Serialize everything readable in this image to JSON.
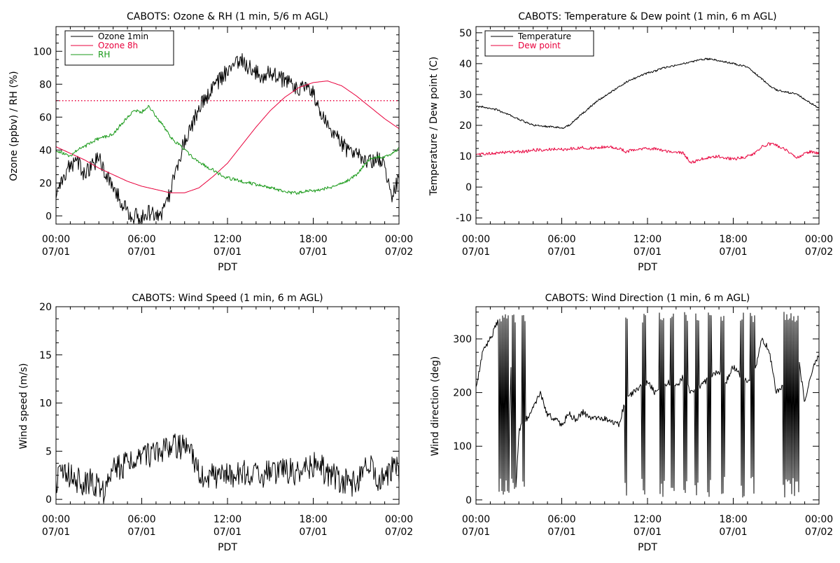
{
  "chart_data": [
    {
      "type": "line",
      "title": "CABOTS: Ozone & RH (1 min, 5/6 m AGL)",
      "xlabel": "PDT",
      "ylabel": "Ozone (ppbv) / RH (%)",
      "xlim": [
        0,
        24
      ],
      "ylim": [
        -5,
        115
      ],
      "yticks": [
        0,
        20,
        40,
        60,
        80,
        100
      ],
      "xticks": [
        0,
        6,
        12,
        18,
        24
      ],
      "xtick_labels": [
        [
          "00:00",
          "07/01"
        ],
        [
          "06:00",
          "07/01"
        ],
        [
          "12:00",
          "07/01"
        ],
        [
          "18:00",
          "07/01"
        ],
        [
          "00:00",
          "07/02"
        ]
      ],
      "grid": false,
      "legend_position": "top-left",
      "reference_lines": [
        {
          "y": 70,
          "color": "#e8003c",
          "style": "dotted"
        }
      ],
      "series": [
        {
          "name": "Ozone 1min",
          "color": "#000000",
          "noise": 5,
          "x": [
            0,
            0.5,
            1,
            1.5,
            2,
            2.5,
            3,
            3.5,
            4,
            4.5,
            5,
            5.5,
            6,
            6.5,
            7,
            7.5,
            8,
            8.5,
            9,
            9.5,
            10,
            10.5,
            11,
            11.5,
            12,
            12.5,
            13,
            13.5,
            14,
            14.5,
            15,
            15.5,
            16,
            16.5,
            17,
            17.5,
            18,
            18.5,
            19,
            19.5,
            20,
            20.5,
            21,
            21.5,
            22,
            22.5,
            23,
            23.5,
            24
          ],
          "y": [
            12,
            25,
            30,
            34,
            25,
            30,
            35,
            25,
            18,
            10,
            2,
            0,
            0,
            2,
            0,
            3,
            15,
            32,
            45,
            55,
            65,
            72,
            77,
            83,
            88,
            93,
            95,
            90,
            87,
            85,
            88,
            84,
            82,
            80,
            78,
            77,
            75,
            62,
            56,
            50,
            44,
            38,
            40,
            35,
            33,
            35,
            30,
            12,
            22
          ]
        },
        {
          "name": "Ozone 8h",
          "color": "#e8003c",
          "noise": 0,
          "x": [
            0,
            1,
            2,
            3,
            4,
            5,
            6,
            7,
            8,
            9,
            10,
            11,
            12,
            13,
            14,
            15,
            16,
            17,
            18,
            19,
            20,
            21,
            22,
            23,
            24
          ],
          "y": [
            42,
            38,
            34,
            29,
            25,
            21,
            18,
            16,
            14,
            14,
            17,
            24,
            32,
            43,
            54,
            64,
            72,
            78,
            81,
            82,
            79,
            73,
            66,
            59,
            53
          ]
        },
        {
          "name": "RH",
          "color": "#1a9a1a",
          "noise": 1,
          "x": [
            0,
            0.5,
            1,
            1.5,
            2,
            2.5,
            3,
            3.5,
            4,
            4.5,
            5,
            5.5,
            6,
            6.5,
            7,
            7.5,
            8,
            8.5,
            9,
            9.5,
            10,
            10.5,
            11,
            11.5,
            12,
            12.5,
            13,
            13.5,
            14,
            14.5,
            15,
            15.5,
            16,
            16.5,
            17,
            17.5,
            18,
            18.5,
            19,
            19.5,
            20,
            20.5,
            21,
            21.5,
            22,
            22.5,
            23,
            23.5,
            24
          ],
          "y": [
            40,
            38,
            36,
            40,
            42,
            45,
            47,
            48,
            50,
            55,
            60,
            64,
            63,
            67,
            60,
            55,
            48,
            44,
            40,
            36,
            33,
            30,
            28,
            25,
            23,
            22,
            21,
            20,
            19,
            18,
            17,
            16,
            15,
            14,
            14,
            15,
            15,
            16,
            17,
            18,
            20,
            22,
            25,
            30,
            35,
            36,
            36,
            38,
            41
          ]
        }
      ]
    },
    {
      "type": "line",
      "title": "CABOTS: Temperature & Dew point (1 min, 6 m AGL)",
      "xlabel": "PDT",
      "ylabel": "Temperature / Dew point (C)",
      "xlim": [
        0,
        24
      ],
      "ylim": [
        -12,
        52
      ],
      "yticks": [
        -10,
        0,
        10,
        20,
        30,
        40,
        50
      ],
      "xticks": [
        0,
        6,
        12,
        18,
        24
      ],
      "xtick_labels": [
        [
          "00:00",
          "07/01"
        ],
        [
          "06:00",
          "07/01"
        ],
        [
          "12:00",
          "07/01"
        ],
        [
          "18:00",
          "07/01"
        ],
        [
          "00:00",
          "07/02"
        ]
      ],
      "grid": false,
      "legend_position": "top-left",
      "reference_lines": [],
      "series": [
        {
          "name": "Temperature",
          "color": "#000000",
          "noise": 0.3,
          "x": [
            0,
            0.5,
            1,
            1.5,
            2,
            2.5,
            3,
            3.5,
            4,
            4.5,
            5,
            5.5,
            6,
            6.5,
            7,
            7.5,
            8,
            8.5,
            9,
            9.5,
            10,
            10.5,
            11,
            11.5,
            12,
            12.5,
            13,
            13.5,
            14,
            14.5,
            15,
            15.5,
            16,
            16.5,
            17,
            17.5,
            18,
            18.5,
            19,
            19.5,
            20,
            20.5,
            21,
            21.5,
            22,
            22.5,
            23,
            23.5,
            24
          ],
          "y": [
            26,
            26,
            25.5,
            25,
            24,
            23,
            22,
            21,
            20,
            20,
            19.5,
            19.5,
            19,
            20,
            22,
            24,
            26,
            28,
            29.5,
            31,
            32.5,
            34,
            35,
            36,
            37,
            37.5,
            38.5,
            39,
            39.5,
            40,
            40.5,
            41,
            41.5,
            41.5,
            41,
            40.5,
            40,
            39.5,
            39,
            37,
            35,
            33,
            31.5,
            31,
            30.5,
            30,
            28.5,
            27,
            25.5
          ]
        },
        {
          "name": "Dew point",
          "color": "#e8003c",
          "noise": 0.5,
          "x": [
            0,
            0.5,
            1,
            1.5,
            2,
            2.5,
            3,
            3.5,
            4,
            4.5,
            5,
            5.5,
            6,
            6.5,
            7,
            7.5,
            8,
            8.5,
            9,
            9.5,
            10,
            10.5,
            11,
            11.5,
            12,
            12.5,
            13,
            13.5,
            14,
            14.5,
            15,
            15.5,
            16,
            16.5,
            17,
            17.5,
            18,
            18.5,
            19,
            19.5,
            20,
            20.5,
            21,
            21.5,
            22,
            22.5,
            23,
            23.5,
            24
          ],
          "y": [
            10.5,
            10.8,
            11,
            11,
            11.2,
            11.3,
            11.5,
            11.6,
            12,
            12,
            12.2,
            12.3,
            12.2,
            12.4,
            12.5,
            12.8,
            12.5,
            12.8,
            13,
            13,
            12.5,
            11.5,
            12,
            12.5,
            12.5,
            12.5,
            12,
            11.5,
            11.5,
            11,
            8,
            8.5,
            9.5,
            9.5,
            10,
            9.5,
            9,
            9.5,
            10,
            11,
            13,
            14,
            13.5,
            12.5,
            11,
            9.5,
            11,
            11.5,
            11
          ]
        }
      ]
    },
    {
      "type": "line",
      "title": "CABOTS: Wind Speed (1 min, 6 m AGL)",
      "xlabel": "PDT",
      "ylabel": "Wind speed (m/s)",
      "xlim": [
        0,
        24
      ],
      "ylim": [
        -0.5,
        20
      ],
      "yticks": [
        0,
        5,
        10,
        15,
        20
      ],
      "xticks": [
        0,
        6,
        12,
        18,
        24
      ],
      "xtick_labels": [
        [
          "00:00",
          "07/01"
        ],
        [
          "06:00",
          "07/01"
        ],
        [
          "12:00",
          "07/01"
        ],
        [
          "18:00",
          "07/01"
        ],
        [
          "00:00",
          "07/02"
        ]
      ],
      "grid": false,
      "legend_position": "none",
      "reference_lines": [],
      "series": [
        {
          "name": "",
          "color": "#000000",
          "noise": 1.4,
          "x": [
            0,
            0.5,
            1,
            1.5,
            2,
            2.5,
            3,
            3.5,
            4,
            4.5,
            5,
            5.5,
            6,
            6.5,
            7,
            7.5,
            8,
            8.5,
            9,
            9.5,
            10,
            10.5,
            11,
            11.5,
            12,
            12.5,
            13,
            13.5,
            14,
            14.5,
            15,
            15.5,
            16,
            16.5,
            17,
            17.5,
            18,
            18.5,
            19,
            19.5,
            20,
            20.5,
            21,
            21.5,
            22,
            22.5,
            23,
            23.5,
            24
          ],
          "y": [
            2,
            2.5,
            2.5,
            2,
            1.5,
            2,
            1,
            0.8,
            3,
            3.5,
            3.5,
            4,
            4.5,
            4.5,
            5,
            5,
            5.5,
            5.5,
            5.5,
            5,
            2.5,
            2.5,
            2.5,
            2.5,
            2.5,
            2.5,
            3,
            2.5,
            2.5,
            2.5,
            3,
            2.5,
            3,
            3,
            2.5,
            3,
            3.5,
            3.5,
            2.5,
            2.5,
            1.8,
            1.8,
            1.5,
            3,
            3.5,
            2,
            2.5,
            3,
            3
          ]
        }
      ]
    },
    {
      "type": "line",
      "title": "CABOTS: Wind Direction (1 min, 6 m AGL)",
      "xlabel": "PDT",
      "ylabel": "Wind direction (deg)",
      "xlim": [
        0,
        24
      ],
      "ylim": [
        -8,
        360
      ],
      "yticks": [
        0,
        100,
        200,
        300
      ],
      "xticks": [
        0,
        6,
        12,
        18,
        24
      ],
      "xtick_labels": [
        [
          "00:00",
          "07/01"
        ],
        [
          "06:00",
          "07/01"
        ],
        [
          "12:00",
          "07/01"
        ],
        [
          "18:00",
          "07/01"
        ],
        [
          "00:00",
          "07/02"
        ]
      ],
      "grid": false,
      "legend_position": "none",
      "reference_lines": [],
      "series": [
        {
          "name": "",
          "color": "#000000",
          "noise": 6,
          "x": [
            0,
            0.5,
            1,
            1.5,
            2,
            2.2,
            2.5,
            2.8,
            3,
            3.5,
            4,
            4.5,
            5,
            5.5,
            6,
            6.5,
            7,
            7.5,
            8,
            8.5,
            9,
            9.5,
            10,
            10.5,
            11,
            11.5,
            12,
            12.5,
            13,
            13.5,
            14,
            14.5,
            15,
            15.5,
            16,
            16.5,
            17,
            17.5,
            18,
            18.5,
            19,
            19.5,
            20,
            20.5,
            21,
            21.5,
            22,
            22.2,
            22.5,
            23,
            23.5,
            24
          ],
          "y": [
            210,
            280,
            300,
            330,
            320,
            10,
            300,
            20,
            130,
            150,
            170,
            200,
            160,
            150,
            140,
            160,
            150,
            165,
            150,
            155,
            150,
            145,
            140,
            190,
            200,
            210,
            220,
            200,
            210,
            220,
            210,
            230,
            200,
            210,
            220,
            230,
            240,
            220,
            250,
            230,
            220,
            240,
            300,
            280,
            200,
            210,
            230,
            10,
            280,
            180,
            240,
            270
          ],
          "spikes": [
            [
              1.6,
              2.35
            ],
            [
              2.45,
              2.75
            ],
            [
              3.2,
              3.45
            ],
            [
              10.4,
              10.6
            ],
            [
              11.6,
              11.9
            ],
            [
              12.8,
              13.2
            ],
            [
              13.6,
              13.9
            ],
            [
              14.5,
              14.8
            ],
            [
              15.3,
              15.6
            ],
            [
              16.2,
              16.5
            ],
            [
              17.1,
              17.4
            ],
            [
              18.5,
              18.8
            ],
            [
              19.2,
              19.5
            ],
            [
              21.5,
              22.6
            ]
          ]
        }
      ]
    }
  ]
}
